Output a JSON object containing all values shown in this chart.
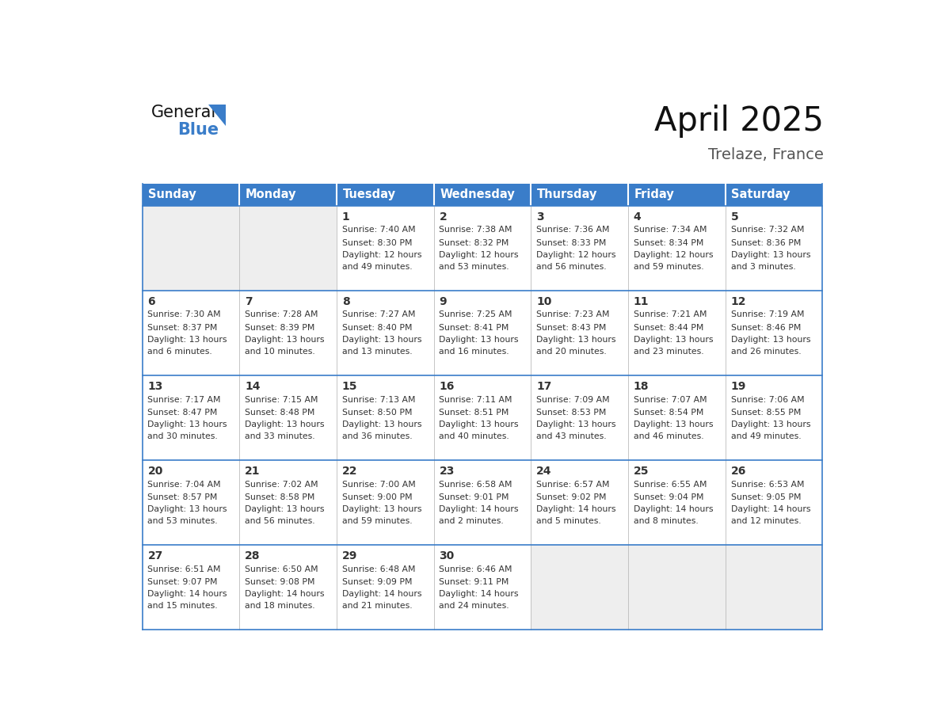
{
  "title": "April 2025",
  "subtitle": "Trelaze, France",
  "header_color": "#3A7DC9",
  "header_text_color": "#FFFFFF",
  "cell_bg_color": "#FFFFFF",
  "alt_cell_bg_color": "#EEEEEE",
  "border_color": "#3A7DC9",
  "row_divider_color": "#3A7DC9",
  "col_divider_color": "#BBBBBB",
  "text_color": "#333333",
  "days_of_week": [
    "Sunday",
    "Monday",
    "Tuesday",
    "Wednesday",
    "Thursday",
    "Friday",
    "Saturday"
  ],
  "calendar_data": [
    [
      {
        "day": "",
        "sunrise": "",
        "sunset": "",
        "daylight": ""
      },
      {
        "day": "",
        "sunrise": "",
        "sunset": "",
        "daylight": ""
      },
      {
        "day": "1",
        "sunrise": "Sunrise: 7:40 AM",
        "sunset": "Sunset: 8:30 PM",
        "daylight": "Daylight: 12 hours and 49 minutes."
      },
      {
        "day": "2",
        "sunrise": "Sunrise: 7:38 AM",
        "sunset": "Sunset: 8:32 PM",
        "daylight": "Daylight: 12 hours and 53 minutes."
      },
      {
        "day": "3",
        "sunrise": "Sunrise: 7:36 AM",
        "sunset": "Sunset: 8:33 PM",
        "daylight": "Daylight: 12 hours and 56 minutes."
      },
      {
        "day": "4",
        "sunrise": "Sunrise: 7:34 AM",
        "sunset": "Sunset: 8:34 PM",
        "daylight": "Daylight: 12 hours and 59 minutes."
      },
      {
        "day": "5",
        "sunrise": "Sunrise: 7:32 AM",
        "sunset": "Sunset: 8:36 PM",
        "daylight": "Daylight: 13 hours and 3 minutes."
      }
    ],
    [
      {
        "day": "6",
        "sunrise": "Sunrise: 7:30 AM",
        "sunset": "Sunset: 8:37 PM",
        "daylight": "Daylight: 13 hours and 6 minutes."
      },
      {
        "day": "7",
        "sunrise": "Sunrise: 7:28 AM",
        "sunset": "Sunset: 8:39 PM",
        "daylight": "Daylight: 13 hours and 10 minutes."
      },
      {
        "day": "8",
        "sunrise": "Sunrise: 7:27 AM",
        "sunset": "Sunset: 8:40 PM",
        "daylight": "Daylight: 13 hours and 13 minutes."
      },
      {
        "day": "9",
        "sunrise": "Sunrise: 7:25 AM",
        "sunset": "Sunset: 8:41 PM",
        "daylight": "Daylight: 13 hours and 16 minutes."
      },
      {
        "day": "10",
        "sunrise": "Sunrise: 7:23 AM",
        "sunset": "Sunset: 8:43 PM",
        "daylight": "Daylight: 13 hours and 20 minutes."
      },
      {
        "day": "11",
        "sunrise": "Sunrise: 7:21 AM",
        "sunset": "Sunset: 8:44 PM",
        "daylight": "Daylight: 13 hours and 23 minutes."
      },
      {
        "day": "12",
        "sunrise": "Sunrise: 7:19 AM",
        "sunset": "Sunset: 8:46 PM",
        "daylight": "Daylight: 13 hours and 26 minutes."
      }
    ],
    [
      {
        "day": "13",
        "sunrise": "Sunrise: 7:17 AM",
        "sunset": "Sunset: 8:47 PM",
        "daylight": "Daylight: 13 hours and 30 minutes."
      },
      {
        "day": "14",
        "sunrise": "Sunrise: 7:15 AM",
        "sunset": "Sunset: 8:48 PM",
        "daylight": "Daylight: 13 hours and 33 minutes."
      },
      {
        "day": "15",
        "sunrise": "Sunrise: 7:13 AM",
        "sunset": "Sunset: 8:50 PM",
        "daylight": "Daylight: 13 hours and 36 minutes."
      },
      {
        "day": "16",
        "sunrise": "Sunrise: 7:11 AM",
        "sunset": "Sunset: 8:51 PM",
        "daylight": "Daylight: 13 hours and 40 minutes."
      },
      {
        "day": "17",
        "sunrise": "Sunrise: 7:09 AM",
        "sunset": "Sunset: 8:53 PM",
        "daylight": "Daylight: 13 hours and 43 minutes."
      },
      {
        "day": "18",
        "sunrise": "Sunrise: 7:07 AM",
        "sunset": "Sunset: 8:54 PM",
        "daylight": "Daylight: 13 hours and 46 minutes."
      },
      {
        "day": "19",
        "sunrise": "Sunrise: 7:06 AM",
        "sunset": "Sunset: 8:55 PM",
        "daylight": "Daylight: 13 hours and 49 minutes."
      }
    ],
    [
      {
        "day": "20",
        "sunrise": "Sunrise: 7:04 AM",
        "sunset": "Sunset: 8:57 PM",
        "daylight": "Daylight: 13 hours and 53 minutes."
      },
      {
        "day": "21",
        "sunrise": "Sunrise: 7:02 AM",
        "sunset": "Sunset: 8:58 PM",
        "daylight": "Daylight: 13 hours and 56 minutes."
      },
      {
        "day": "22",
        "sunrise": "Sunrise: 7:00 AM",
        "sunset": "Sunset: 9:00 PM",
        "daylight": "Daylight: 13 hours and 59 minutes."
      },
      {
        "day": "23",
        "sunrise": "Sunrise: 6:58 AM",
        "sunset": "Sunset: 9:01 PM",
        "daylight": "Daylight: 14 hours and 2 minutes."
      },
      {
        "day": "24",
        "sunrise": "Sunrise: 6:57 AM",
        "sunset": "Sunset: 9:02 PM",
        "daylight": "Daylight: 14 hours and 5 minutes."
      },
      {
        "day": "25",
        "sunrise": "Sunrise: 6:55 AM",
        "sunset": "Sunset: 9:04 PM",
        "daylight": "Daylight: 14 hours and 8 minutes."
      },
      {
        "day": "26",
        "sunrise": "Sunrise: 6:53 AM",
        "sunset": "Sunset: 9:05 PM",
        "daylight": "Daylight: 14 hours and 12 minutes."
      }
    ],
    [
      {
        "day": "27",
        "sunrise": "Sunrise: 6:51 AM",
        "sunset": "Sunset: 9:07 PM",
        "daylight": "Daylight: 14 hours and 15 minutes."
      },
      {
        "day": "28",
        "sunrise": "Sunrise: 6:50 AM",
        "sunset": "Sunset: 9:08 PM",
        "daylight": "Daylight: 14 hours and 18 minutes."
      },
      {
        "day": "29",
        "sunrise": "Sunrise: 6:48 AM",
        "sunset": "Sunset: 9:09 PM",
        "daylight": "Daylight: 14 hours and 21 minutes."
      },
      {
        "day": "30",
        "sunrise": "Sunrise: 6:46 AM",
        "sunset": "Sunset: 9:11 PM",
        "daylight": "Daylight: 14 hours and 24 minutes."
      },
      {
        "day": "",
        "sunrise": "",
        "sunset": "",
        "daylight": ""
      },
      {
        "day": "",
        "sunrise": "",
        "sunset": "",
        "daylight": ""
      },
      {
        "day": "",
        "sunrise": "",
        "sunset": "",
        "daylight": ""
      }
    ]
  ]
}
